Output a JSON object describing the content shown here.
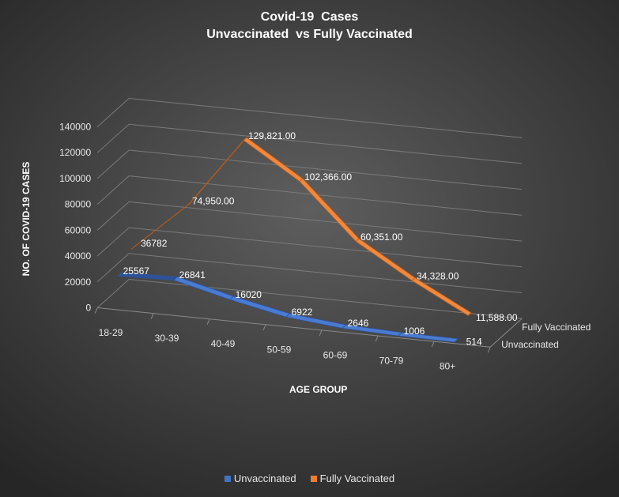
{
  "chart_data": {
    "type": "line",
    "title": [
      "Covid-19  Cases",
      "Unvaccinated  vs Fully Vaccinated"
    ],
    "xlabel": "AGE GROUP",
    "ylabel": "NO. OF COVID-19 CASES",
    "categories": [
      "18-29",
      "30-39",
      "40-49",
      "50-59",
      "60-69",
      "70-79",
      "80+"
    ],
    "ylim": [
      0,
      140000
    ],
    "yticks": [
      "0",
      "20000",
      "40000",
      "60000",
      "80000",
      "100000",
      "120000",
      "140000"
    ],
    "depth_labels": [
      "Fully Vaccinated",
      "Unvaccinated"
    ],
    "grid": true,
    "legend_position": "bottom",
    "series": [
      {
        "name": "Unvaccinated",
        "color": "#4472c4",
        "values": [
          25567,
          26841,
          16020,
          6922,
          2646,
          1006,
          514
        ],
        "labels": [
          "25567",
          "26841",
          "16020",
          "6922",
          "2646",
          "1006",
          "514"
        ]
      },
      {
        "name": "Fully Vaccinated",
        "color": "#ed7d31",
        "values": [
          36782,
          74950,
          129821,
          102366,
          60351,
          34328,
          11588
        ],
        "labels": [
          "36782",
          "74,950.00",
          "129,821.00",
          "102,366.00",
          "60,351.00",
          "34,328.00",
          "11,588.00"
        ]
      }
    ]
  }
}
